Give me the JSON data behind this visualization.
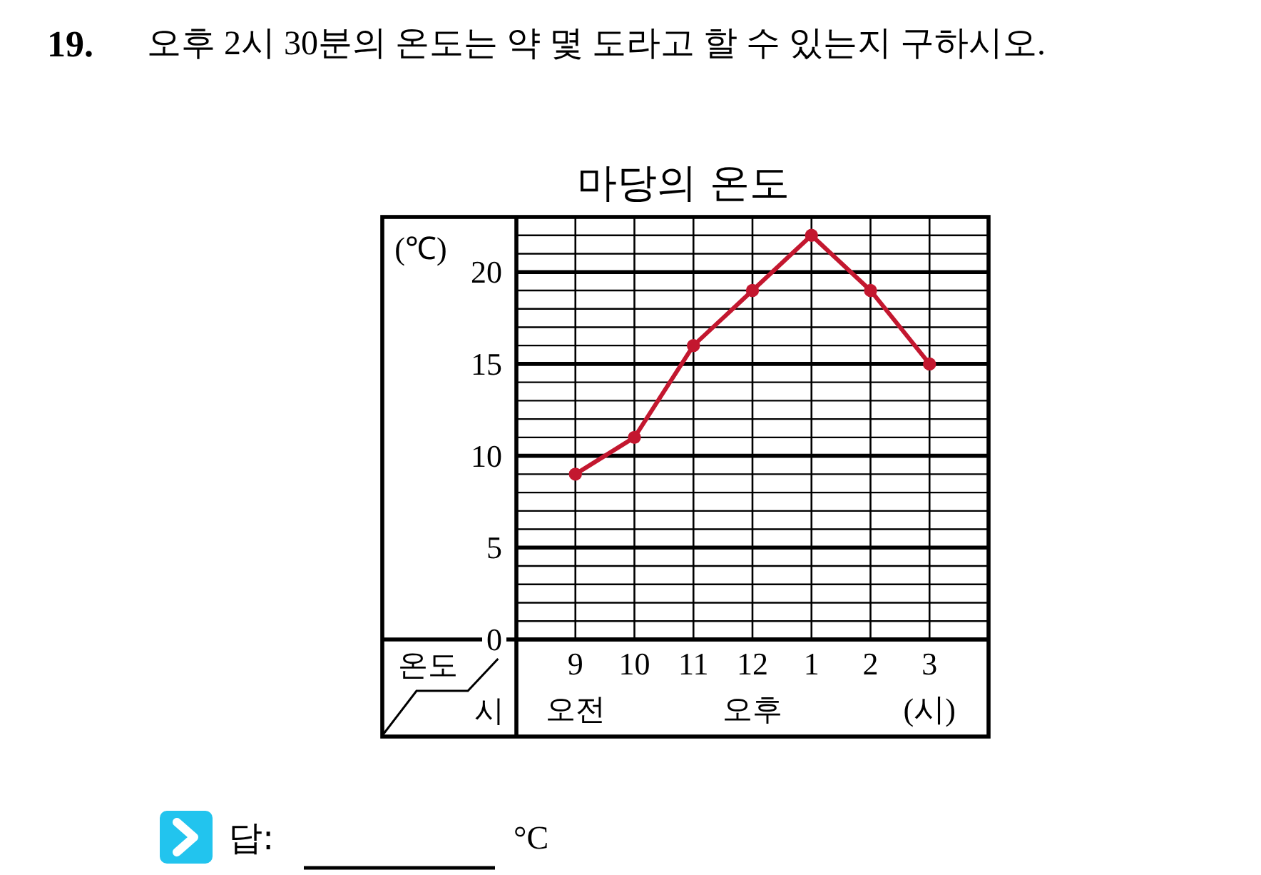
{
  "chart_data": {
    "type": "line",
    "title": "마당의 온도",
    "xlabel": "(시)",
    "ylabel": "(℃)",
    "categories": [
      "9",
      "10",
      "11",
      "12",
      "1",
      "2",
      "3"
    ],
    "series": [
      {
        "color": "#c3172f",
        "values": [
          9,
          11,
          16,
          19,
          22,
          19,
          15
        ]
      }
    ],
    "ylim": [
      0,
      23
    ],
    "yticks": [
      0,
      {
        "value": 1,
        "label": null
      },
      {
        "value": 2,
        "label": null
      },
      {
        "value": 3,
        "label": null
      },
      {
        "value": 4,
        "label": null
      },
      5,
      {
        "value": 6,
        "label": null
      },
      {
        "value": 7,
        "label": null
      },
      {
        "value": 8,
        "label": null
      },
      {
        "value": 9,
        "label": null
      },
      10,
      {
        "value": 11,
        "label": null
      },
      {
        "value": 12,
        "label": null
      },
      {
        "value": 13,
        "label": null
      },
      {
        "value": 14,
        "label": null
      },
      15,
      {
        "value": 16,
        "label": null
      },
      {
        "value": 17,
        "label": null
      },
      {
        "value": 18,
        "label": null
      },
      {
        "value": 19,
        "label": null
      },
      20,
      {
        "value": 21,
        "label": null
      },
      {
        "value": 22,
        "label": null
      }
    ],
    "grid": true,
    "marker": "circle",
    "line_style": "solid",
    "annotations": [
      "19.",
      "오후 2시 30분의 온도는 약 몇 도라고 할 수 있는지 구하시오.",
      "온도",
      "시",
      "오전",
      "오후",
      "답:",
      "°C"
    ]
  }
}
